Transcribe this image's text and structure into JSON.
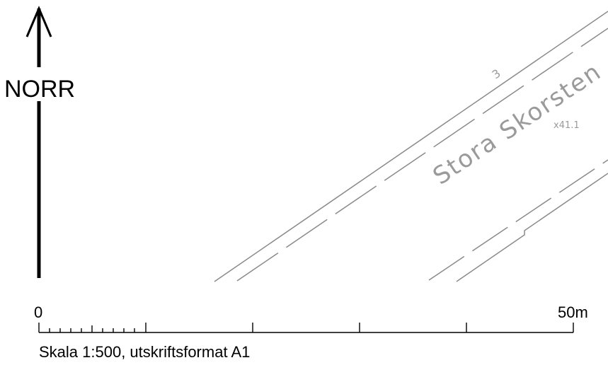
{
  "north_arrow": {
    "label": "NORR"
  },
  "scale_bar": {
    "start_label": "0",
    "end_label": "50m",
    "caption": "Skala 1:500, utskriftsformat A1"
  },
  "map": {
    "road_number": "3",
    "place_name": "Stora Skorsten",
    "elevation_label": "x41.1"
  },
  "colors": {
    "ink": "#000000",
    "map_lines": "#8a8a8a",
    "map_text": "#9a9a9a"
  }
}
